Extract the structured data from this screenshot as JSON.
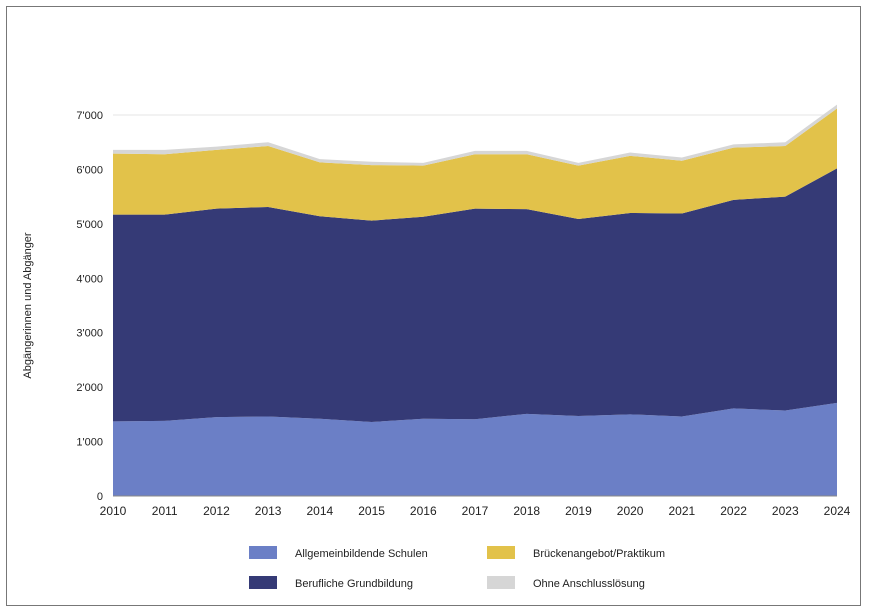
{
  "chart_data": {
    "type": "area",
    "stacked": true,
    "title": "",
    "xlabel": "",
    "ylabel": "Abgängerinnen und Abgänger",
    "ylim": [
      0,
      7000
    ],
    "yticks": [
      0,
      1000,
      2000,
      3000,
      4000,
      5000,
      6000,
      7000
    ],
    "ytick_labels": [
      "0",
      "1'000",
      "2'000",
      "3'000",
      "4'000",
      "5'000",
      "6'000",
      "7'000"
    ],
    "x": [
      "2010",
      "2011",
      "2012",
      "2013",
      "2014",
      "2015",
      "2016",
      "2017",
      "2018",
      "2019",
      "2020",
      "2021",
      "2022",
      "2023",
      "2024"
    ],
    "grid": true,
    "legend_position": "bottom",
    "series": [
      {
        "name": "Allgemeinbildende Schulen",
        "color": "#6b7fc6",
        "values": [
          1370,
          1380,
          1450,
          1460,
          1420,
          1360,
          1420,
          1410,
          1510,
          1470,
          1500,
          1460,
          1610,
          1570,
          1710
        ]
      },
      {
        "name": "Berufliche Grundbildung",
        "color": "#353a76",
        "values": [
          3800,
          3790,
          3830,
          3850,
          3720,
          3700,
          3710,
          3870,
          3760,
          3620,
          3700,
          3730,
          3830,
          3930,
          4310
        ]
      },
      {
        "name": "Brückenangebot/Praktikum",
        "color": "#e2c24a",
        "values": [
          1120,
          1110,
          1080,
          1120,
          990,
          1020,
          940,
          1000,
          1010,
          980,
          1050,
          970,
          960,
          930,
          1100
        ]
      },
      {
        "name": "Ohne Anschlusslösung",
        "color": "#d6d6d6",
        "values": [
          70,
          80,
          60,
          70,
          60,
          60,
          50,
          60,
          60,
          50,
          60,
          60,
          60,
          70,
          70
        ]
      }
    ]
  }
}
